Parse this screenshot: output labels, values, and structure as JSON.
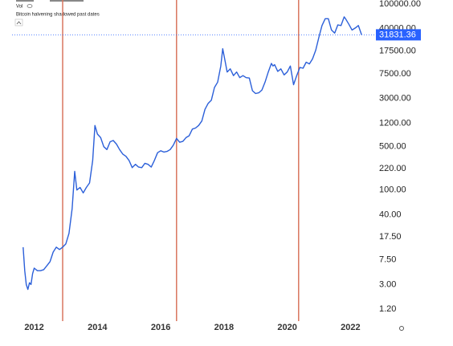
{
  "chart_data": {
    "type": "line",
    "annotation": "Bitcoin halvening shadowed past dates",
    "volume_label": "Vol",
    "log_scale": true,
    "xlim": [
      2011.3,
      2022.6
    ],
    "xticks": [
      2012,
      2014,
      2016,
      2018,
      2020,
      2022
    ],
    "ylim": [
      0.77,
      116000
    ],
    "yticks": [
      {
        "value": 100000,
        "label": "100000.00"
      },
      {
        "value": 40000,
        "label": "40000.00"
      },
      {
        "value": 17500,
        "label": "17500.00"
      },
      {
        "value": 7500,
        "label": "7500.00"
      },
      {
        "value": 3000,
        "label": "3000.00"
      },
      {
        "value": 1200,
        "label": "1200.00"
      },
      {
        "value": 500,
        "label": "500.00"
      },
      {
        "value": 220,
        "label": "220.00"
      },
      {
        "value": 100,
        "label": "100.00"
      },
      {
        "value": 40,
        "label": "40.00"
      },
      {
        "value": 17.5,
        "label": "17.50"
      },
      {
        "value": 7.5,
        "label": "7.50"
      },
      {
        "value": 3,
        "label": "3.00"
      },
      {
        "value": 1.2,
        "label": "1.20"
      }
    ],
    "halvings": [
      2012.9,
      2016.5,
      2020.36
    ],
    "halving_color": "#d9765f",
    "last_value": 31831.36,
    "last_value_color": "#2962ff",
    "series": [
      {
        "color": "#2b5fd9",
        "x": [
          2011.65,
          2011.7,
          2011.75,
          2011.8,
          2011.85,
          2011.9,
          2011.95,
          2012.0,
          2012.1,
          2012.2,
          2012.3,
          2012.4,
          2012.5,
          2012.6,
          2012.7,
          2012.8,
          2012.9,
          2013.0,
          2013.1,
          2013.2,
          2013.28,
          2013.35,
          2013.45,
          2013.55,
          2013.65,
          2013.75,
          2013.85,
          2013.92,
          2014.0,
          2014.1,
          2014.2,
          2014.3,
          2014.4,
          2014.5,
          2014.6,
          2014.7,
          2014.8,
          2014.9,
          2015.0,
          2015.1,
          2015.2,
          2015.3,
          2015.4,
          2015.5,
          2015.6,
          2015.7,
          2015.8,
          2015.9,
          2016.0,
          2016.1,
          2016.2,
          2016.3,
          2016.4,
          2016.5,
          2016.6,
          2016.7,
          2016.8,
          2016.9,
          2017.0,
          2017.1,
          2017.2,
          2017.3,
          2017.4,
          2017.5,
          2017.6,
          2017.7,
          2017.8,
          2017.9,
          2017.96,
          2018.05,
          2018.1,
          2018.2,
          2018.3,
          2018.4,
          2018.5,
          2018.6,
          2018.7,
          2018.8,
          2018.9,
          2019.0,
          2019.1,
          2019.2,
          2019.3,
          2019.4,
          2019.5,
          2019.55,
          2019.6,
          2019.7,
          2019.8,
          2019.9,
          2020.0,
          2020.1,
          2020.2,
          2020.3,
          2020.4,
          2020.5,
          2020.6,
          2020.7,
          2020.8,
          2020.9,
          2021.0,
          2021.1,
          2021.2,
          2021.3,
          2021.4,
          2021.5,
          2021.6,
          2021.7,
          2021.8,
          2021.85,
          2021.95,
          2022.05,
          2022.15,
          2022.25,
          2022.35
        ],
        "values": [
          12,
          5,
          3,
          2.5,
          3.2,
          3,
          4.5,
          5.5,
          5,
          5,
          5.2,
          6,
          7,
          10,
          12,
          11,
          12,
          13.5,
          20,
          50,
          200,
          100,
          110,
          90,
          110,
          130,
          300,
          1100,
          800,
          700,
          500,
          450,
          600,
          630,
          550,
          450,
          380,
          350,
          300,
          230,
          260,
          235,
          230,
          270,
          260,
          235,
          300,
          400,
          430,
          410,
          420,
          450,
          530,
          680,
          590,
          610,
          700,
          750,
          960,
          1000,
          1100,
          1300,
          2000,
          2500,
          2800,
          4500,
          5500,
          10000,
          19000,
          11000,
          8000,
          9000,
          7000,
          8000,
          6500,
          7000,
          6500,
          6400,
          4000,
          3600,
          3700,
          4100,
          5500,
          8000,
          11000,
          10000,
          10500,
          8200,
          9000,
          7200,
          8000,
          10000,
          5000,
          7000,
          9500,
          9200,
          11500,
          10800,
          13000,
          18000,
          29000,
          45000,
          58000,
          58000,
          38000,
          34000,
          46000,
          45000,
          62000,
          57000,
          47000,
          38000,
          41000,
          45000,
          31831.36
        ]
      }
    ]
  }
}
